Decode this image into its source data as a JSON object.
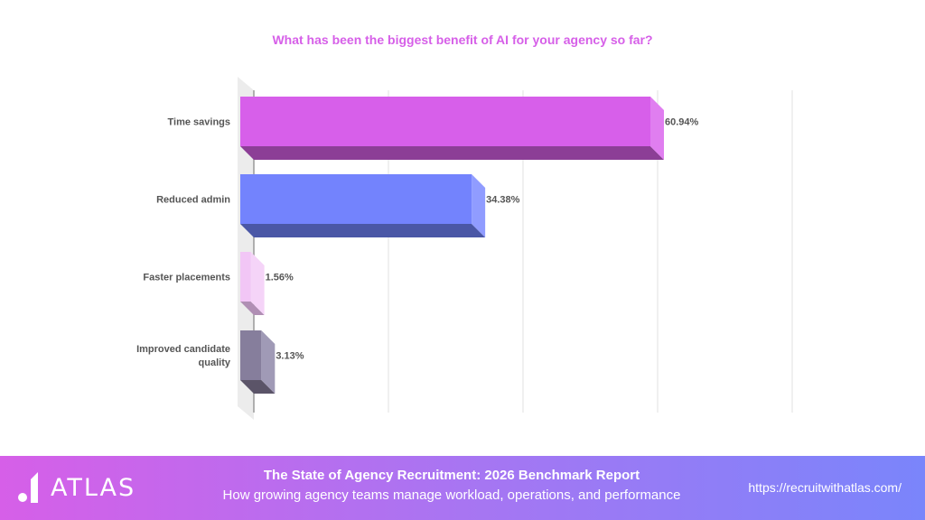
{
  "chart_data": {
    "type": "bar",
    "orientation": "horizontal",
    "style": "3d",
    "title": "What has been the biggest benefit of AI for your agency so far?",
    "categories": [
      "Time savings",
      "Reduced admin",
      "Faster placements",
      "Improved candidate quality"
    ],
    "values": [
      60.94,
      34.38,
      1.56,
      3.13
    ],
    "data_labels": [
      "60.94%",
      "34.38%",
      "1.56%",
      "3.13%"
    ],
    "xlim": [
      0,
      80
    ],
    "grid": true,
    "colors": [
      {
        "front": "#d75fea",
        "side": "#e07ef0",
        "bottom": "#8c3e96"
      },
      {
        "front": "#7383fd",
        "side": "#909cff",
        "bottom": "#4a57a6"
      },
      {
        "front": "#f2c6f6",
        "side": "#f5d4f8",
        "bottom": "#b08fb4"
      },
      {
        "front": "#867e9c",
        "side": "#a09ab6",
        "bottom": "#5b5468"
      }
    ]
  },
  "footer": {
    "logo": "ATLAS",
    "title": "The State of Agency Recruitment: 2026 Benchmark Report",
    "subtitle": "How growing agency teams manage workload, operations, and performance",
    "url": "https://recruitwithatlas.com/"
  }
}
